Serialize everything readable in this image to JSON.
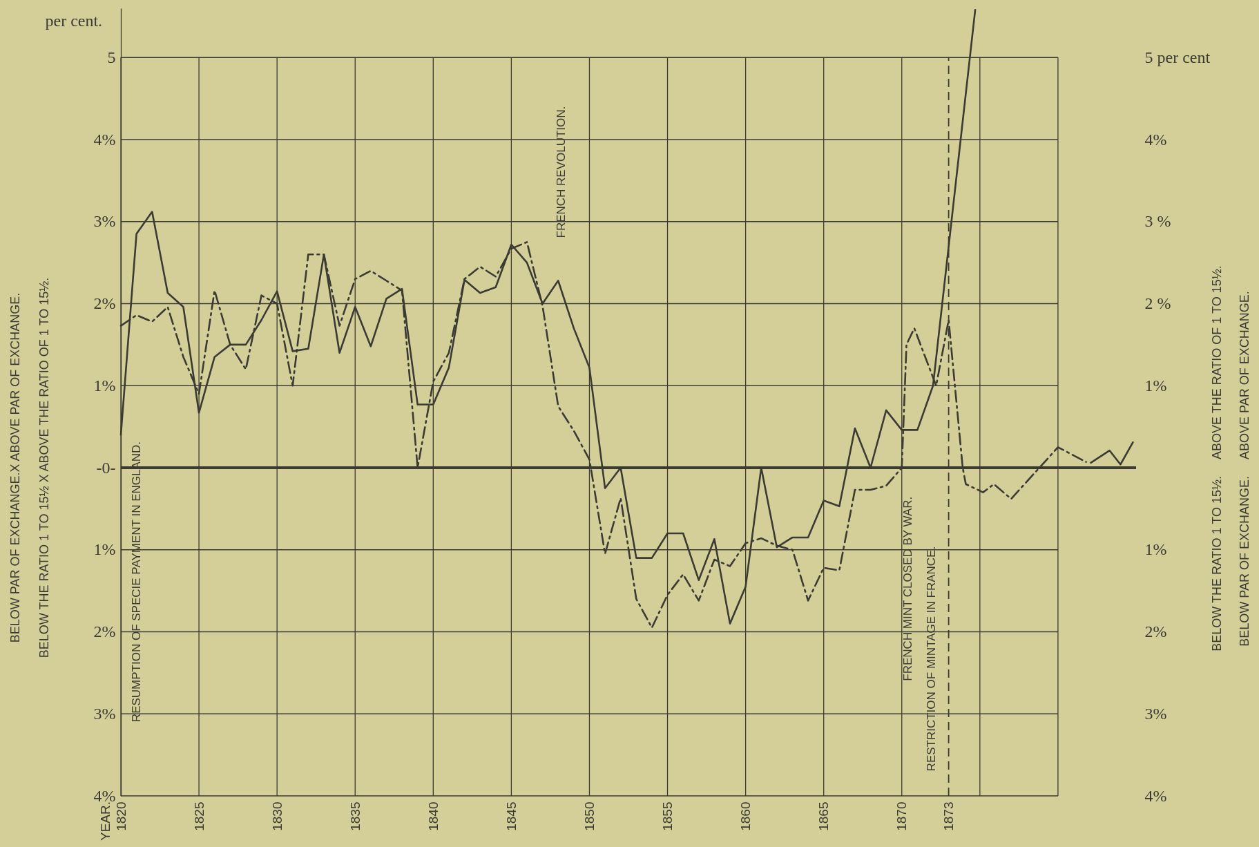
{
  "chart_data": {
    "type": "line",
    "ylabel": "per cent.",
    "xlim": [
      1820,
      1885
    ],
    "xticks": [
      1820,
      1825,
      1830,
      1835,
      1840,
      1845,
      1850,
      1855,
      1860,
      1865,
      1870,
      1873,
      {
        "value": 1875,
        "label": null
      },
      {
        "value": 1880,
        "label": null
      }
    ],
    "ylim": [
      -4,
      5.6
    ],
    "yticks": [
      5,
      {
        "value": 4,
        "label": "4%"
      },
      {
        "value": 3,
        "label": "3%"
      },
      {
        "value": 2,
        "label": "2%"
      },
      {
        "value": 1,
        "label": "1%"
      },
      {
        "value": 0,
        "label": "-0-"
      },
      {
        "value": -1,
        "label": "1%"
      },
      {
        "value": -2,
        "label": "2%"
      },
      {
        "value": -3,
        "label": "3%"
      },
      {
        "value": -4,
        "label": "4%"
      }
    ],
    "y2lim": [
      -4,
      5.6
    ],
    "y2ticks": [
      {
        "value": 5,
        "label": "5 per cent"
      },
      {
        "value": 4,
        "label": "4%"
      },
      {
        "value": 3,
        "label": "3 %"
      },
      {
        "value": 2,
        "label": "2 %"
      },
      {
        "value": 1,
        "label": "1%"
      },
      {
        "value": 0,
        "label": null
      },
      {
        "value": -1,
        "label": "1%"
      },
      {
        "value": -2,
        "label": "2%"
      },
      {
        "value": -3,
        "label": "3%"
      },
      {
        "value": -4,
        "label": "4%"
      }
    ],
    "grid": true,
    "series": [
      {
        "color": "#3b3a33",
        "line_style": "solid",
        "x": [
          1820,
          1821,
          1822,
          1823,
          1824,
          1825,
          1826,
          1827,
          1828,
          1829,
          1830,
          1831,
          1832,
          1833,
          1834,
          1835,
          1836,
          1837,
          1838,
          1839,
          1840,
          1841,
          1842,
          1843,
          1844,
          1845,
          1846,
          1847,
          1848,
          1849,
          1850,
          1851,
          1852,
          1853,
          1854,
          1855,
          1856,
          1857,
          1858,
          1859,
          1860,
          1861,
          1862,
          1863,
          1864,
          1865,
          1866,
          1867,
          1868,
          1869,
          1870,
          1871,
          1872,
          1874.7
        ],
        "values": [
          0.4,
          2.85,
          3.12,
          2.13,
          1.96,
          0.67,
          1.35,
          1.5,
          1.5,
          1.8,
          2.15,
          1.42,
          1.45,
          2.6,
          1.4,
          1.96,
          1.48,
          2.06,
          2.18,
          0.77,
          0.77,
          1.22,
          2.29,
          2.13,
          2.2,
          2.72,
          2.5,
          2.0,
          2.28,
          1.7,
          1.22,
          -0.25,
          0,
          -1.1,
          -1.1,
          -0.8,
          -0.8,
          -1.37,
          -0.87,
          -1.9,
          -1.45,
          0,
          -0.97,
          -0.85,
          -0.85,
          -0.4,
          -0.47,
          0.48,
          0,
          0.7,
          0.46,
          0.46,
          1.0,
          5.58
        ]
      },
      {
        "color": "#3b3a33",
        "line_style": "dashdot",
        "x": [
          1820,
          1821,
          1822,
          1823,
          1824,
          1825,
          1826,
          1827,
          1828,
          1829,
          1830,
          1831,
          1832,
          1833,
          1834,
          1835,
          1836,
          1837,
          1838,
          1839,
          1840,
          1841,
          1842,
          1843,
          1844,
          1845,
          1846,
          1847,
          1848,
          1849,
          1850,
          1851,
          1852,
          1853,
          1854,
          1855,
          1856,
          1857,
          1858,
          1859,
          1860,
          1861,
          1862,
          1863,
          1864,
          1865,
          1866,
          1867,
          1868,
          1869,
          1870,
          1870.3,
          1870.8,
          1872.2,
          1873,
          1873.9,
          1874.1,
          1875.2,
          1875.9,
          1877,
          1880,
          1881.8
        ],
        "values": [
          1.73,
          1.86,
          1.78,
          1.96,
          1.35,
          0.9,
          2.16,
          1.5,
          1.2,
          2.1,
          2.0,
          1.0,
          2.6,
          2.6,
          1.73,
          2.3,
          2.4,
          2.28,
          2.16,
          0,
          1.05,
          1.4,
          2.3,
          2.45,
          2.33,
          2.67,
          2.75,
          1.97,
          0.75,
          0.45,
          0.1,
          -1.05,
          -0.37,
          -1.6,
          -1.95,
          -1.55,
          -1.3,
          -1.62,
          -1.12,
          -1.2,
          -0.92,
          -0.86,
          -0.95,
          -1.0,
          -1.62,
          -1.22,
          -1.25,
          -0.27,
          -0.27,
          -0.22,
          0,
          1.5,
          1.7,
          1.0,
          1.8,
          0,
          -0.2,
          -0.3,
          -0.2,
          -0.38,
          0.25,
          0.07
        ]
      },
      {
        "color": "#3b3a33",
        "line_style": "solid",
        "x": [
          1882.1,
          1883.3,
          1884,
          1884.8
        ],
        "values": [
          0.06,
          0.21,
          0.04,
          0.31
        ]
      }
    ],
    "ref_lines": [
      {
        "axis": "x",
        "value": 1873,
        "line_style": "dashed"
      },
      {
        "axis": "y",
        "value": 0,
        "line_style": "solid"
      }
    ],
    "annotations": [
      "RESUMPTION OF SPECIE PAYMENT IN ENGLAND.",
      "FRENCH REVOLUTION.",
      "FRENCH MINT CLOSED BY WAR.",
      "RESTRICTION OF MINTAGE IN FRANCE.",
      "BELOW PAR OF EXCHANGE.X ABOVE PAR OF EXCHANGE.",
      "BELOW THE RATIO 1 TO 15½ X ABOVE THE RATIO OF 1 TO 15½.",
      "ABOVE THE RATIO OF 1 TO 15½.",
      "BELOW THE RATIO 1 TO 15½.",
      "ABOVE PAR OF EXCHANGE.",
      "BELOW PAR OF EXCHANGE.",
      "YEAR."
    ]
  }
}
